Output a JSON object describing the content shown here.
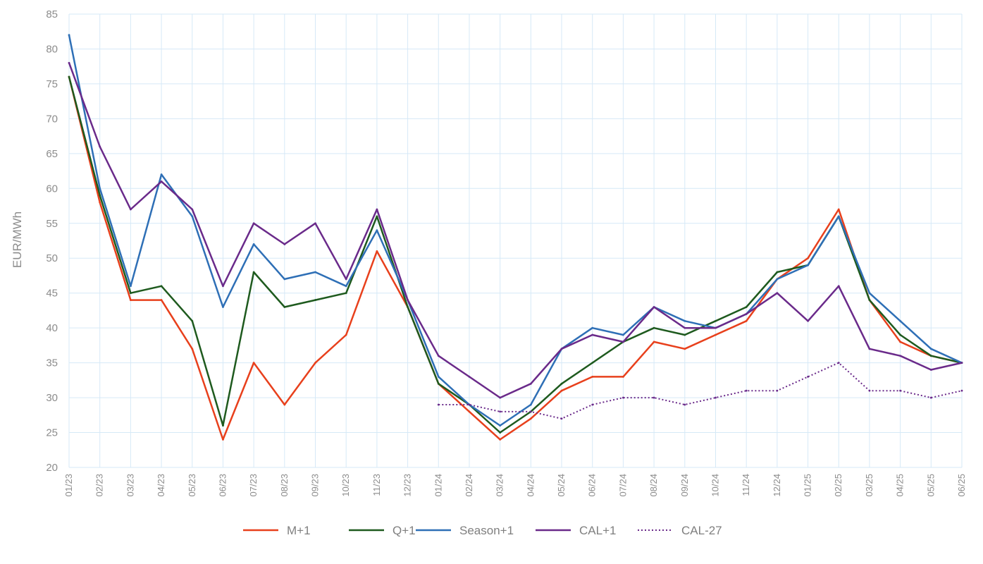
{
  "chart_data": {
    "type": "line",
    "title": "",
    "xlabel": "",
    "ylabel": "EUR/MWh",
    "ylim": [
      20,
      85
    ],
    "yticks": [
      20,
      25,
      30,
      35,
      40,
      45,
      50,
      55,
      60,
      65,
      70,
      75,
      80,
      85
    ],
    "x_tick_labels": [
      "01/23",
      "02/23",
      "03/23",
      "04/23",
      "05/23",
      "06/23",
      "07/23",
      "08/23",
      "09/23",
      "10/23",
      "11/23",
      "12/23",
      "01/24",
      "02/24",
      "03/24",
      "04/24",
      "05/24",
      "06/24",
      "07/24",
      "08/24",
      "09/24",
      "10/24",
      "11/24",
      "12/24",
      "01/25",
      "02/25",
      "03/25",
      "04/25",
      "05/25",
      "06/25"
    ],
    "grid": true,
    "legend_position": "bottom",
    "series": [
      {
        "name": "M+1",
        "color": "#e8401c",
        "style": "solid",
        "x": [
          "01/23",
          "02/23",
          "03/23",
          "04/23",
          "05/23",
          "06/23",
          "07/23",
          "08/23",
          "09/23",
          "10/23",
          "11/23",
          "12/23",
          "01/24",
          "02/24",
          "03/24",
          "04/24",
          "05/24",
          "06/24",
          "07/24",
          "08/24",
          "09/24",
          "10/24",
          "11/24",
          "12/24",
          "01/25",
          "02/25",
          "03/25",
          "04/25",
          "05/25",
          "06/25"
        ],
        "values": [
          76,
          58,
          44,
          44,
          37,
          24,
          35,
          29,
          35,
          39,
          51,
          43,
          32,
          28,
          24,
          27,
          31,
          33,
          33,
          38,
          37,
          39,
          41,
          47,
          50,
          57,
          44,
          38,
          36,
          35
        ]
      },
      {
        "name": "Q+1",
        "color": "#1e5a1e",
        "style": "solid",
        "x": [
          "01/23",
          "02/23",
          "03/23",
          "04/23",
          "05/23",
          "06/23",
          "07/23",
          "08/23",
          "09/23",
          "10/23",
          "11/23",
          "12/23",
          "01/24",
          "02/24",
          "03/24",
          "04/24",
          "05/24",
          "06/24",
          "07/24",
          "08/24",
          "09/24",
          "10/24",
          "11/24",
          "12/24",
          "01/25",
          "02/25",
          "03/25",
          "04/25",
          "05/25",
          "06/25"
        ],
        "values": [
          76,
          59,
          45,
          46,
          41,
          26,
          48,
          43,
          44,
          45,
          56,
          43,
          32,
          29,
          25,
          28,
          32,
          35,
          38,
          40,
          39,
          41,
          43,
          48,
          49,
          56,
          44,
          39,
          36,
          35
        ]
      },
      {
        "name": "Season+1",
        "color": "#2e6fb6",
        "style": "solid",
        "x": [
          "01/23",
          "02/23",
          "03/23",
          "04/23",
          "05/23",
          "06/23",
          "07/23",
          "08/23",
          "09/23",
          "10/23",
          "11/23",
          "12/23",
          "01/24",
          "02/24",
          "03/24",
          "04/24",
          "05/24",
          "06/24",
          "07/24",
          "08/24",
          "09/24",
          "10/24",
          "11/24",
          "12/24",
          "01/25",
          "02/25",
          "03/25",
          "04/25",
          "05/25",
          "06/25"
        ],
        "values": [
          82,
          60,
          46,
          62,
          56,
          43,
          52,
          47,
          48,
          46,
          54,
          44,
          33,
          29,
          26,
          29,
          37,
          40,
          39,
          43,
          41,
          40,
          42,
          47,
          49,
          56,
          45,
          41,
          37,
          35
        ]
      },
      {
        "name": "CAL+1",
        "color": "#6a2a8a",
        "style": "solid",
        "x": [
          "01/23",
          "02/23",
          "03/23",
          "04/23",
          "05/23",
          "06/23",
          "07/23",
          "08/23",
          "09/23",
          "10/23",
          "11/23",
          "12/23",
          "01/24",
          "02/24",
          "03/24",
          "04/24",
          "05/24",
          "06/24",
          "07/24",
          "08/24",
          "09/24",
          "10/24",
          "11/24",
          "12/24",
          "01/25",
          "02/25",
          "03/25",
          "04/25",
          "05/25",
          "06/25"
        ],
        "values": [
          78,
          66,
          57,
          61,
          57,
          46,
          55,
          52,
          55,
          47,
          57,
          44,
          36,
          33,
          30,
          32,
          37,
          39,
          38,
          43,
          40,
          40,
          42,
          45,
          41,
          46,
          37,
          36,
          34,
          35
        ]
      },
      {
        "name": "CAL-27",
        "color": "#6a2a8a",
        "style": "dotted",
        "x": [
          "01/24",
          "02/24",
          "03/24",
          "04/24",
          "05/24",
          "06/24",
          "07/24",
          "08/24",
          "09/24",
          "10/24",
          "11/24",
          "12/24",
          "01/25",
          "02/25",
          "03/25",
          "04/25",
          "05/25",
          "06/25"
        ],
        "values": [
          29,
          29,
          28,
          28,
          27,
          29,
          30,
          30,
          29,
          30,
          31,
          31,
          33,
          35,
          31,
          31,
          30,
          31
        ]
      }
    ]
  }
}
